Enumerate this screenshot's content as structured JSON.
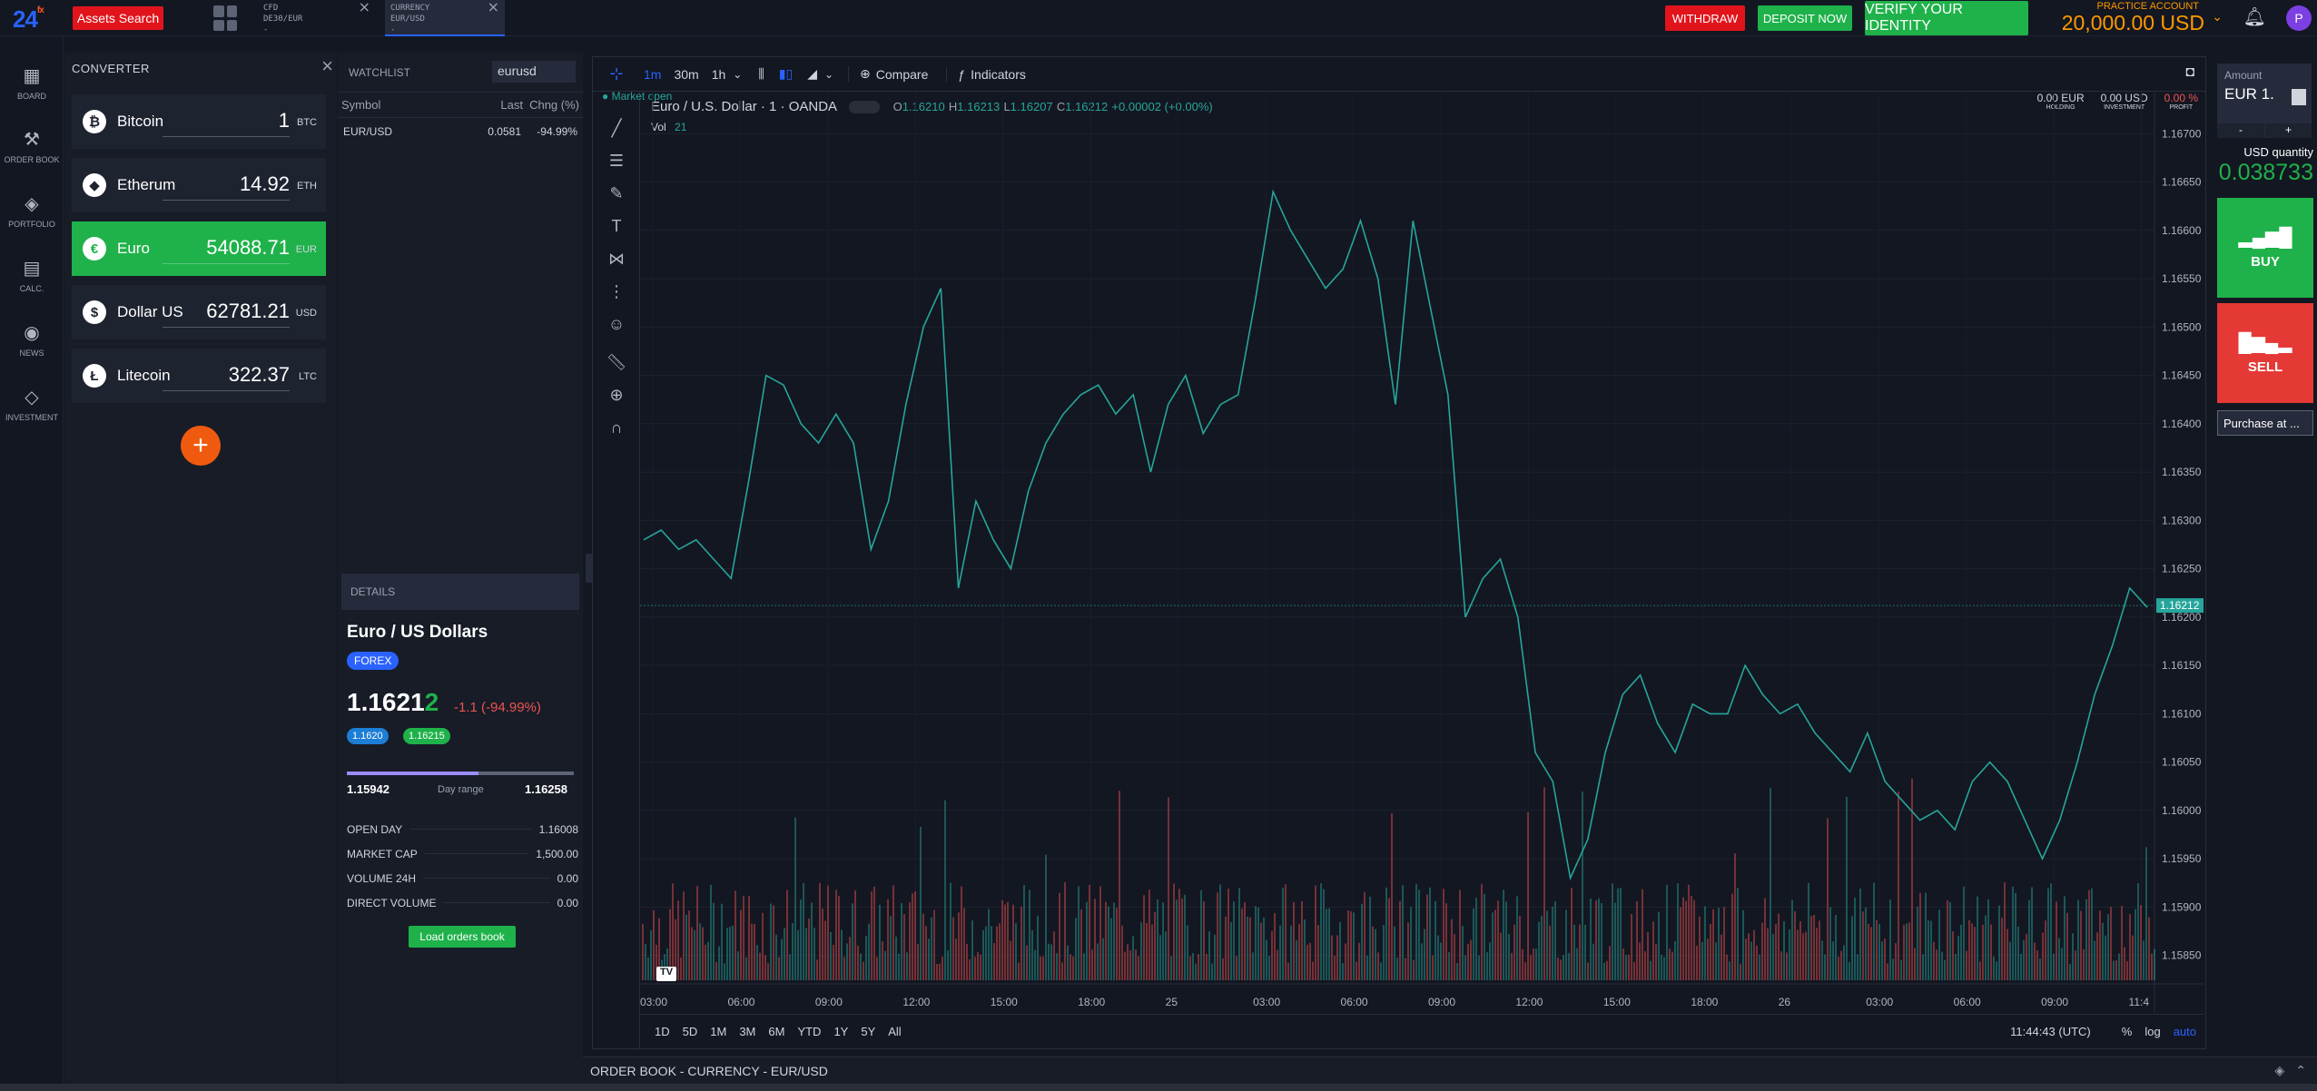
{
  "header": {
    "logo": "24",
    "logo_suffix": "fx",
    "assets_search": "Assets Search",
    "tabs": [
      {
        "line1": "CFD",
        "line2": "DE30/EUR",
        "line3": "-"
      },
      {
        "line1": "CURRENCY",
        "line2": "EUR/USD",
        "line3": "-"
      }
    ],
    "withdraw": "WITHDRAW",
    "deposit": "DEPOSIT NOW",
    "verify": "VERIFY YOUR IDENTITY",
    "account_label": "PRACTICE ACCOUNT",
    "account_value": "20,000.00 USD",
    "avatar": "P"
  },
  "nav": [
    {
      "label": "BOARD",
      "icon": "board-icon"
    },
    {
      "label": "ORDER BOOK",
      "icon": "order-book-icon"
    },
    {
      "label": "PORTFOLIO",
      "icon": "portfolio-icon"
    },
    {
      "label": "CALC.",
      "icon": "calculator-icon"
    },
    {
      "label": "NEWS",
      "icon": "news-icon"
    },
    {
      "label": "INVESTMENT",
      "icon": "investment-icon"
    }
  ],
  "converter": {
    "title": "CONVERTER",
    "rows": [
      {
        "name": "Bitcoin",
        "value": "1",
        "unit": "BTC",
        "glyph": "₿"
      },
      {
        "name": "Etherum",
        "value": "14.92",
        "unit": "ETH",
        "glyph": "◆"
      },
      {
        "name": "Euro",
        "value": "54088.71",
        "unit": "EUR",
        "glyph": "€"
      },
      {
        "name": "Dollar US",
        "value": "62781.21",
        "unit": "USD",
        "glyph": "$"
      },
      {
        "name": "Litecoin",
        "value": "322.37",
        "unit": "LTC",
        "glyph": "Ł"
      }
    ]
  },
  "watchlist": {
    "title": "WATCHLIST",
    "search_value": "eurusd",
    "columns": [
      "Symbol",
      "Last",
      "Chng (%)"
    ],
    "rows": [
      {
        "symbol": "EUR/USD",
        "last": "0.0581",
        "change": "-94.99%"
      }
    ]
  },
  "details": {
    "title": "DETAILS",
    "name": "Euro / US Dollars",
    "badge": "FOREX",
    "price_main": "1.1621",
    "price_last": "2",
    "price_change": "-1.1 (-94.99%)",
    "bid": "1.1620",
    "ask": "1.16215",
    "range_low": "1.15942",
    "range_label": "Day range",
    "range_high": "1.16258",
    "range_fill": 0.58,
    "stats": [
      {
        "label": "OPEN DAY",
        "value": "1.16008"
      },
      {
        "label": "MARKET CAP",
        "value": "1,500.00"
      },
      {
        "label": "VOLUME 24H",
        "value": "0.00"
      },
      {
        "label": "DIRECT VOLUME",
        "value": "0.00"
      }
    ],
    "load_orders": "Load orders book"
  },
  "chart_toolbar": {
    "intervals": [
      "1m",
      "30m",
      "1h"
    ],
    "compare": "Compare",
    "indicators": "Indicators"
  },
  "chart": {
    "market_status": "Market open",
    "symbol": "Euro / U.S. Dollar · 1 · OANDA",
    "ohlc": {
      "o": "1.16210",
      "h": "1.16213",
      "l": "1.16207",
      "c": "1.16212",
      "chg": "+0.00002 (+0.00%)"
    },
    "vol_label": "Vol",
    "vol_value": "21",
    "holding_value": "0.00 EUR",
    "holding_label": "HOLDING",
    "investment_value": "0.00 USD",
    "investment_label": "INVESTMENT",
    "profit_value": "0.00 %",
    "profit_label": "PROFIT",
    "last_price_tag": "1.16212",
    "ranges": [
      "1D",
      "5D",
      "1M",
      "3M",
      "6M",
      "YTD",
      "1Y",
      "5Y",
      "All"
    ],
    "time_utc": "11:44:43 (UTC)",
    "scale_opts": [
      "%",
      "log",
      "auto"
    ]
  },
  "chart_data": {
    "type": "line",
    "x_ticks": [
      "03:00",
      "06:00",
      "09:00",
      "12:00",
      "15:00",
      "18:00",
      "25",
      "03:00",
      "06:00",
      "09:00",
      "12:00",
      "15:00",
      "18:00",
      "26",
      "03:00",
      "06:00",
      "09:00",
      "11:4"
    ],
    "y_ticks": [
      "1.16700",
      "1.16650",
      "1.16600",
      "1.16550",
      "1.16500",
      "1.16450",
      "1.16400",
      "1.16350",
      "1.16300",
      "1.16250",
      "1.16200",
      "1.16150",
      "1.16100",
      "1.16050",
      "1.16000",
      "1.15950",
      "1.15900",
      "1.15850"
    ],
    "ylim": [
      1.1583,
      1.1672
    ],
    "series": [
      {
        "values": [
          1.1628,
          1.1629,
          1.1627,
          1.1628,
          1.1626,
          1.1624,
          1.1634,
          1.1645,
          1.1644,
          1.164,
          1.1638,
          1.1641,
          1.1638,
          1.1627,
          1.1632,
          1.1642,
          1.165,
          1.1654,
          1.1623,
          1.1632,
          1.1628,
          1.1625,
          1.1633,
          1.1638,
          1.1641,
          1.1643,
          1.1644,
          1.1641,
          1.1643,
          1.1635,
          1.1642,
          1.1645,
          1.1639,
          1.1642,
          1.1643,
          1.1653,
          1.1664,
          1.166,
          1.1657,
          1.1654,
          1.1656,
          1.1661,
          1.1655,
          1.1642,
          1.1661,
          1.1652,
          1.1643,
          1.162,
          1.1624,
          1.1626,
          1.162,
          1.1606,
          1.1603,
          1.1593,
          1.1597,
          1.1606,
          1.1612,
          1.1614,
          1.1609,
          1.1606,
          1.1611,
          1.161,
          1.161,
          1.1615,
          1.1612,
          1.161,
          1.1611,
          1.1608,
          1.1606,
          1.1604,
          1.1608,
          1.1603,
          1.1601,
          1.1599,
          1.16,
          1.1598,
          1.1603,
          1.1605,
          1.1603,
          1.1599,
          1.1595,
          1.1599,
          1.1605,
          1.1612,
          1.1617,
          1.1623,
          1.1621
        ]
      }
    ]
  },
  "right_panel": {
    "amount_label": "Amount",
    "amount_value": "EUR 1.",
    "minus": "-",
    "plus": "+",
    "qty_label": "USD quantity",
    "qty_value": "0.038733",
    "buy": "BUY",
    "sell": "SELL",
    "purchase": "Purchase at ..."
  },
  "bottom": {
    "order_book": "ORDER BOOK - CURRENCY - EUR/USD"
  },
  "colors": {
    "up": "#26a69a",
    "down": "#ef5350",
    "accent": "#2962ff",
    "green": "#1fb24a",
    "red": "#e53935"
  }
}
